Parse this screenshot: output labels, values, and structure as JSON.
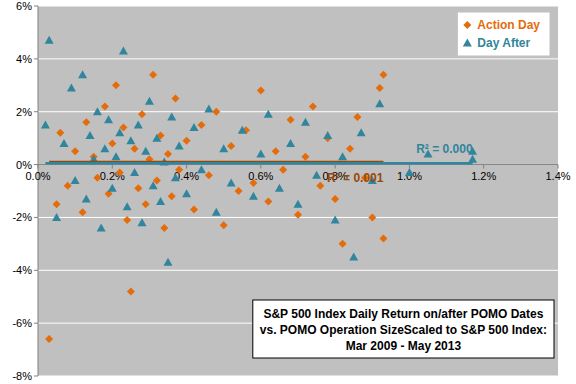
{
  "chart_data": {
    "type": "scatter",
    "title": [
      "S&P 500 Index Daily Return on/after POMO Dates",
      "vs. POMO Operation SizeScaled to S&P 500 Index:",
      "Mar 2009 - May 2013"
    ],
    "xlim": [
      0,
      1.4
    ],
    "xticks": [
      {
        "value": 0,
        "label": "0.0%"
      },
      {
        "value": 0.2,
        "label": "0.2%"
      },
      {
        "value": 0.4,
        "label": "0.4%"
      },
      {
        "value": 0.6,
        "label": "0.6%"
      },
      {
        "value": 0.8,
        "label": "0.8%"
      },
      {
        "value": 1.0,
        "label": "1.0%"
      },
      {
        "value": 1.2,
        "label": "1.2%"
      },
      {
        "value": 1.4,
        "label": "1.4%"
      }
    ],
    "ylim": [
      -8,
      6
    ],
    "yticks": [
      {
        "value": -8,
        "label": "-8%"
      },
      {
        "value": -6,
        "label": "-6%"
      },
      {
        "value": -4,
        "label": "-4%"
      },
      {
        "value": -2,
        "label": "-2%"
      },
      {
        "value": 0,
        "label": "0%"
      },
      {
        "value": 2,
        "label": "2%"
      },
      {
        "value": 4,
        "label": "4%"
      },
      {
        "value": 6,
        "label": "6%"
      }
    ],
    "grid": true,
    "legend": "top-right",
    "series": [
      {
        "name": "Action Day",
        "color": "#e46c0a",
        "marker": "diamond",
        "x": [
          0.03,
          0.05,
          0.06,
          0.08,
          0.1,
          0.12,
          0.13,
          0.15,
          0.16,
          0.18,
          0.19,
          0.2,
          0.21,
          0.22,
          0.23,
          0.24,
          0.25,
          0.26,
          0.27,
          0.28,
          0.29,
          0.3,
          0.31,
          0.32,
          0.33,
          0.34,
          0.35,
          0.36,
          0.37,
          0.38,
          0.4,
          0.42,
          0.44,
          0.46,
          0.48,
          0.5,
          0.52,
          0.54,
          0.56,
          0.58,
          0.6,
          0.62,
          0.64,
          0.66,
          0.68,
          0.7,
          0.72,
          0.74,
          0.76,
          0.78,
          0.8,
          0.82,
          0.84,
          0.86,
          0.88,
          0.9,
          0.92,
          0.93,
          0.93
        ],
        "values": [
          -6.6,
          -1.5,
          1.2,
          -0.8,
          0.5,
          -1.8,
          1.6,
          0.3,
          -0.5,
          2.2,
          -1.1,
          0.8,
          3.0,
          -0.3,
          1.4,
          -2.1,
          -4.8,
          0.6,
          -0.9,
          1.9,
          -1.5,
          0.2,
          3.4,
          -0.6,
          1.1,
          -2.4,
          0.4,
          -1.2,
          2.5,
          -0.2,
          0.9,
          -1.7,
          1.5,
          -0.4,
          2.0,
          -2.3,
          0.7,
          -1.0,
          1.3,
          -0.7,
          2.8,
          -1.4,
          0.5,
          -0.2,
          1.7,
          -1.9,
          0.3,
          2.2,
          -0.8,
          1.0,
          -1.3,
          -3.0,
          0.6,
          1.8,
          -0.5,
          -2.0,
          2.9,
          3.4,
          -2.8
        ],
        "trendline": {
          "x": [
            0.03,
            0.93
          ],
          "values": [
            0.1,
            0.1
          ],
          "color": "#984807",
          "label": "R² = 0.001"
        }
      },
      {
        "name": "Day After",
        "color": "#31859c",
        "marker": "triangle",
        "x": [
          0.02,
          0.03,
          0.05,
          0.07,
          0.09,
          0.1,
          0.12,
          0.13,
          0.14,
          0.15,
          0.16,
          0.17,
          0.18,
          0.19,
          0.2,
          0.21,
          0.22,
          0.23,
          0.24,
          0.25,
          0.26,
          0.27,
          0.28,
          0.29,
          0.3,
          0.31,
          0.32,
          0.33,
          0.34,
          0.35,
          0.36,
          0.37,
          0.38,
          0.4,
          0.42,
          0.44,
          0.46,
          0.48,
          0.5,
          0.52,
          0.55,
          0.58,
          0.6,
          0.62,
          0.65,
          0.68,
          0.7,
          0.72,
          0.75,
          0.78,
          0.8,
          0.82,
          0.85,
          0.87,
          0.9,
          0.92,
          1.0,
          1.05,
          1.17,
          1.17
        ],
        "values": [
          1.5,
          4.7,
          -2.0,
          0.8,
          2.9,
          -0.6,
          3.4,
          -1.3,
          1.1,
          0.2,
          2.0,
          -2.4,
          0.6,
          1.7,
          -0.9,
          0.3,
          1.2,
          4.3,
          -1.6,
          0.9,
          -0.3,
          1.5,
          -2.2,
          0.5,
          2.4,
          -0.8,
          1.0,
          -1.4,
          0.1,
          -3.7,
          1.8,
          -0.5,
          0.7,
          -1.1,
          1.4,
          -0.2,
          2.1,
          -1.8,
          0.6,
          -0.7,
          1.3,
          -1.2,
          0.4,
          1.9,
          -0.9,
          0.8,
          -1.5,
          1.6,
          -0.4,
          1.1,
          -2.1,
          0.3,
          -3.5,
          1.2,
          -0.6,
          2.3,
          -0.3,
          0.4,
          0.5,
          0.2
        ],
        "trendline": {
          "x": [
            0.02,
            1.17
          ],
          "values": [
            0.05,
            0.05
          ],
          "color": "#31859c",
          "label": "R² = 0.000"
        }
      }
    ]
  }
}
